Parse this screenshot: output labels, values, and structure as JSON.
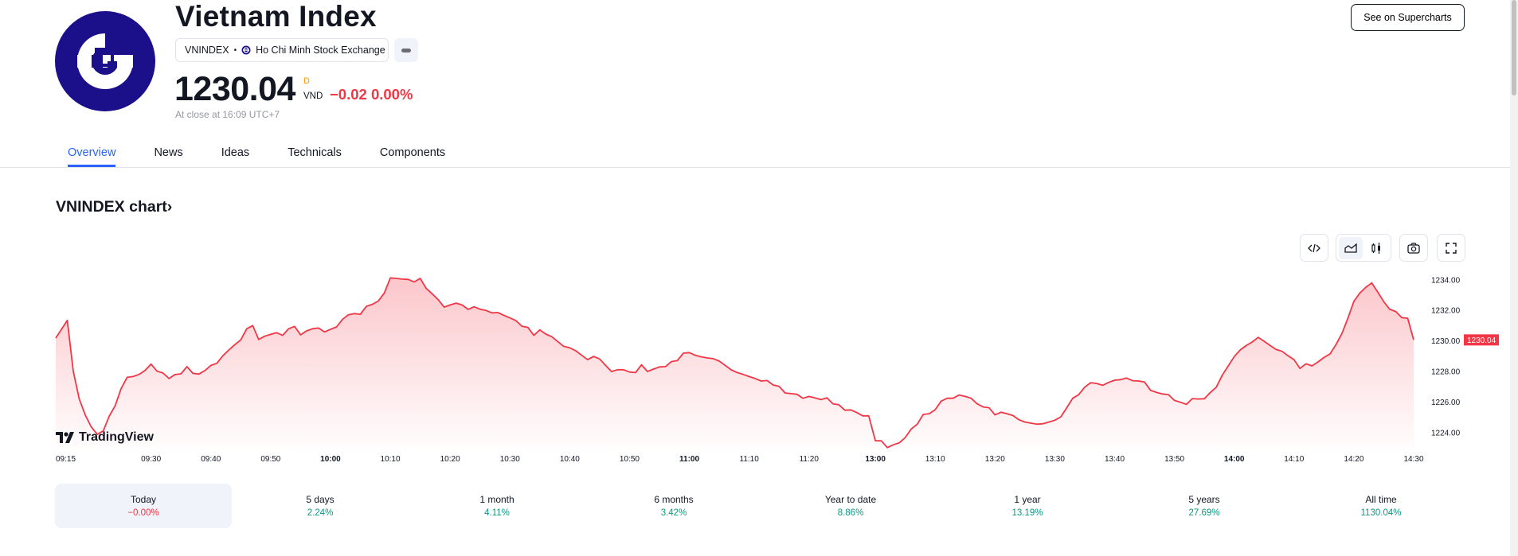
{
  "header": {
    "title": "Vietnam Index",
    "symbol": "VNINDEX",
    "exchange": "Ho Chi Minh Stock Exchange",
    "price": "1230.04",
    "price_flag": "D",
    "currency": "VND",
    "change": "−0.02 0.00%",
    "close_time": "At close at 16:09 UTC+7",
    "supercharts_label": "See on Supercharts",
    "logo_color": "#1b0f8a"
  },
  "tabs": [
    {
      "label": "Overview",
      "active": true
    },
    {
      "label": "News"
    },
    {
      "label": "Ideas"
    },
    {
      "label": "Technicals"
    },
    {
      "label": "Components"
    }
  ],
  "chart_section": {
    "title": "VNINDEX chart",
    "title_chevron": "›",
    "toolbar": [
      "embed-code-icon",
      "area-chart-icon",
      "candles-icon",
      "camera-icon",
      "fullscreen-icon"
    ],
    "brand": "TradingView"
  },
  "chart_data": {
    "type": "area",
    "line_color": "#f23645",
    "ylim": [
      1222,
      1235
    ],
    "y_ticks": [
      "1234.00",
      "1232.00",
      "1230.00",
      "1228.00",
      "1226.00",
      "1224.00"
    ],
    "y_tick_values": [
      1234,
      1232,
      1230,
      1228,
      1226,
      1224
    ],
    "last_price_label": "1230.04",
    "last_price": 1230.04,
    "x_ticks": [
      {
        "label": "09:15"
      },
      {
        "label": "09:30"
      },
      {
        "label": "09:40"
      },
      {
        "label": "09:50"
      },
      {
        "label": "10:00",
        "bold": true
      },
      {
        "label": "10:10"
      },
      {
        "label": "10:20"
      },
      {
        "label": "10:30"
      },
      {
        "label": "10:40"
      },
      {
        "label": "10:50"
      },
      {
        "label": "11:00",
        "bold": true
      },
      {
        "label": "11:10"
      },
      {
        "label": "11:20"
      },
      {
        "label": "13:00",
        "bold": true
      },
      {
        "label": "13:10"
      },
      {
        "label": "13:20"
      },
      {
        "label": "13:30"
      },
      {
        "label": "13:40"
      },
      {
        "label": "13:50"
      },
      {
        "label": "14:00",
        "bold": true
      },
      {
        "label": "14:10"
      },
      {
        "label": "14:20"
      },
      {
        "label": "14:30"
      }
    ],
    "sessions": [
      {
        "start": "09:15",
        "interval_min": 1,
        "values": [
          1230.16,
          1231.32,
          1227.99,
          1226.17,
          1225.13,
          1224.35,
          1223.86,
          1224.08,
          1225.04,
          1225.73,
          1226.86,
          1227.59,
          1227.64,
          1227.78,
          1228.04,
          1228.46,
          1227.99,
          1227.87,
          1227.51,
          1227.77,
          1227.82,
          1228.29,
          1227.85,
          1227.8,
          1228.03,
          1228.37,
          1228.51,
          1229.0,
          1229.38,
          1229.73,
          1230.04,
          1230.77,
          1230.98,
          1230.07,
          1230.28,
          1230.4,
          1230.51,
          1230.34,
          1230.77,
          1230.92,
          1230.37,
          1230.63,
          1230.77,
          1230.82,
          1230.56,
          1230.73,
          1230.89,
          1231.38,
          1231.69,
          1231.76,
          1231.72,
          1232.24,
          1232.37,
          1232.59,
          1233.11,
          1234.1,
          1234.07,
          1234.02,
          1234.0,
          1233.84,
          1234.07,
          1233.41,
          1233.06,
          1232.68,
          1232.19,
          1232.33,
          1232.45,
          1232.33,
          1232.04,
          1232.21,
          1232.05,
          1231.97,
          1231.81,
          1231.83,
          1231.65,
          1231.48,
          1231.3,
          1230.94,
          1230.86,
          1230.34,
          1230.7,
          1230.42,
          1230.25,
          1229.93,
          1229.62,
          1229.52,
          1229.33,
          1229.03,
          1228.75,
          1228.96,
          1228.79,
          1228.37,
          1227.97,
          1228.09,
          1228.09,
          1227.94,
          1227.9,
          1228.41,
          1227.97,
          1228.13,
          1228.27,
          1228.29,
          1228.62,
          1228.69,
          1229.17,
          1229.21,
          1229.03,
          1228.93,
          1228.86,
          1228.81,
          1228.65,
          1228.37,
          1228.08,
          1227.9,
          1227.78,
          1227.64,
          1227.51,
          1227.35,
          1227.38,
          1227.09,
          1227.0,
          1226.57,
          1226.52,
          1226.48,
          1226.22,
          1226.34,
          1226.24,
          1226.13,
          1226.25,
          1225.86,
          1225.79,
          1225.44,
          1225.46,
          1225.28,
          1225.07,
          1225.07
        ]
      },
      {
        "start": "13:00",
        "interval_min": 1,
        "values": [
          1223.44,
          1223.43,
          1222.99,
          1223.17,
          1223.3,
          1223.65,
          1224.21,
          1224.52,
          1225.16,
          1225.21,
          1225.47,
          1226.03,
          1226.22,
          1226.22,
          1226.43,
          1226.34,
          1226.22,
          1225.86,
          1225.65,
          1225.6,
          1225.13,
          1225.3,
          1225.21,
          1225.09,
          1224.81,
          1224.66,
          1224.59,
          1224.52,
          1224.55,
          1224.66,
          1224.78,
          1225.0,
          1225.6,
          1226.22,
          1226.46,
          1226.95,
          1227.24,
          1227.19,
          1227.07,
          1227.26,
          1227.4,
          1227.44,
          1227.54,
          1227.37,
          1227.35,
          1227.28,
          1226.74,
          1226.6,
          1226.5,
          1226.46,
          1226.08,
          1225.96,
          1225.82,
          1226.2,
          1226.17,
          1226.19,
          1226.6,
          1226.95,
          1227.73,
          1228.34,
          1228.95,
          1229.38,
          1229.67,
          1229.9,
          1230.21,
          1229.95,
          1229.67,
          1229.41,
          1229.29,
          1229.0,
          1228.74,
          1228.17,
          1228.48,
          1228.34,
          1228.6,
          1228.89,
          1229.12,
          1229.73,
          1230.46,
          1231.46,
          1232.56,
          1233.11,
          1233.49,
          1233.77,
          1233.16,
          1232.54,
          1232.04,
          1231.9,
          1231.5,
          1231.46,
          1230.04
        ]
      }
    ]
  },
  "periods": [
    {
      "label": "Today",
      "value": "−0.00%",
      "color": "#f23645",
      "active": true
    },
    {
      "label": "5 days",
      "value": "2.24%",
      "color": "#089981"
    },
    {
      "label": "1 month",
      "value": "4.11%",
      "color": "#089981"
    },
    {
      "label": "6 months",
      "value": "3.42%",
      "color": "#089981"
    },
    {
      "label": "Year to date",
      "value": "8.86%",
      "color": "#089981"
    },
    {
      "label": "1 year",
      "value": "13.19%",
      "color": "#089981"
    },
    {
      "label": "5 years",
      "value": "27.69%",
      "color": "#089981"
    },
    {
      "label": "All time",
      "value": "1130.04%",
      "color": "#089981"
    }
  ]
}
